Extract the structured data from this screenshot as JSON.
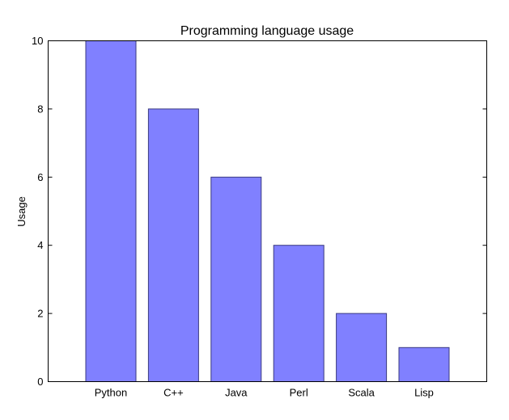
{
  "chart_data": {
    "type": "bar",
    "title": "Programming language usage",
    "xlabel": "",
    "ylabel": "Usage",
    "categories": [
      "Python",
      "C++",
      "Java",
      "Perl",
      "Scala",
      "Lisp"
    ],
    "values": [
      10,
      8,
      6,
      4,
      2,
      1
    ],
    "ylim": [
      0,
      10
    ],
    "yticks": [
      "0",
      "2",
      "4",
      "6",
      "8",
      "10"
    ],
    "bar_color": "#8080ff",
    "grid": false,
    "legend": "none"
  }
}
